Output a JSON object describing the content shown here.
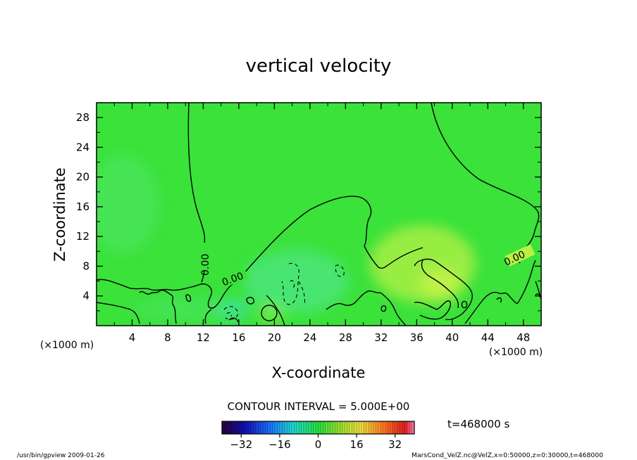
{
  "chart_data": {
    "type": "contour",
    "title": "vertical velocity",
    "xlabel": "X-coordinate",
    "ylabel": "Z-coordinate",
    "x_unit_left": "(×1000 m)",
    "x_unit_right": "(×1000 m)",
    "xlim": [
      0,
      50
    ],
    "ylim": [
      0,
      30
    ],
    "x_ticks": [
      "4",
      "8",
      "12",
      "16",
      "20",
      "24",
      "28",
      "32",
      "36",
      "40",
      "44",
      "48"
    ],
    "y_ticks": [
      "4",
      "8",
      "12",
      "16",
      "20",
      "24",
      "28"
    ],
    "contour_labels": [
      {
        "text": "0.00",
        "x": 12.2,
        "z": 8.2,
        "rotate": -90
      },
      {
        "text": "0.00",
        "x": 15.3,
        "z": 6.3,
        "rotate": -20
      },
      {
        "text": "0.00",
        "x": 47.0,
        "z": 9.1,
        "rotate": -25
      }
    ],
    "contour_interval_label": "CONTOUR INTERVAL = 5.000E+00",
    "time_label": "t=468000 s",
    "colorbar_ticks": [
      "−32",
      "−16",
      "0",
      "16",
      "32"
    ],
    "colorbar_range": [
      -40,
      40
    ],
    "grid": false
  },
  "footer": {
    "left": "/usr/bin/gpview   2009-01-26",
    "right": "MarsCond_VelZ.nc@VelZ,x=0:50000,z=0:30000,t=468000"
  },
  "colors": {
    "background_field": "#3ae23a",
    "contour": "#000000"
  }
}
